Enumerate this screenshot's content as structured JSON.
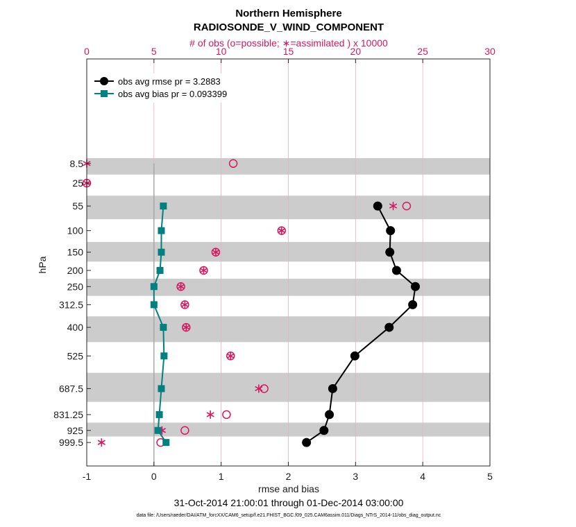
{
  "chart_data": {
    "type": "line",
    "title": "Northern Hemisphere",
    "subtitle": "RADIOSONDE_V_WIND_COMPONENT",
    "top_axis_label": "# of obs (o=possible; ∗=assimilated ) x 10000",
    "xlabel": "rmse and bias",
    "ylabel": "hPa",
    "date_range": "31-Oct-2014 21:00:01 through 01-Dec-2014 03:00:00",
    "data_file": "data file: /Users/raeder/DAI/ATM_forcXX/CAM6_setup/f.e21.FHIST_BGC.f09_025.CAM6assim.011/Diags_NTrS_2014-11/obs_diag_output.nc",
    "xlim": [
      -1,
      5
    ],
    "xticks": [
      "-1",
      "0",
      "1",
      "2",
      "3",
      "4",
      "5"
    ],
    "top_xlim": [
      0,
      30
    ],
    "top_xticks": [
      "0",
      "5",
      "10",
      "15",
      "20",
      "25",
      "30"
    ],
    "levels": [
      8.5,
      25,
      55,
      100,
      150,
      200,
      250,
      312.5,
      400,
      525,
      687.5,
      831.25,
      925,
      999.5
    ],
    "level_labels": [
      "8.5",
      "25",
      "55",
      "100",
      "150",
      "200",
      "250",
      "312.5",
      "400",
      "525",
      "687.5",
      "831.25",
      "925",
      "999.5"
    ],
    "series": [
      {
        "name": "obs avg rmse pr = 3.2883",
        "color": "#000000",
        "marker": "circle",
        "levels": [
          55,
          100,
          150,
          200,
          250,
          312.5,
          400,
          525,
          687.5,
          831.25,
          925,
          999.5
        ],
        "values": [
          3.33,
          3.52,
          3.51,
          3.61,
          3.89,
          3.85,
          3.5,
          2.99,
          2.66,
          2.61,
          2.53,
          2.27
        ]
      },
      {
        "name": "obs avg bias pr = 0.093399",
        "color": "#00807f",
        "marker": "square",
        "levels": [
          55,
          100,
          150,
          200,
          250,
          312.5,
          400,
          525,
          687.5,
          831.25,
          925,
          999.5
        ],
        "values": [
          0.14,
          0.11,
          0.11,
          0.09,
          0.0,
          0.0,
          0.14,
          0.15,
          0.11,
          0.08,
          0.06,
          0.18
        ]
      }
    ],
    "obs_counts": {
      "color": "#d6175f",
      "levels": [
        8.5,
        25,
        55,
        100,
        150,
        200,
        250,
        312.5,
        400,
        525,
        687.5,
        831.25,
        925,
        999.5
      ],
      "possible": [
        10.9,
        0.0,
        23.8,
        14.5,
        9.6,
        8.7,
        7.0,
        7.3,
        7.4,
        10.7,
        13.2,
        10.4,
        7.3,
        5.5
      ],
      "assimilated": [
        0.0,
        0.0,
        22.8,
        14.5,
        9.6,
        8.7,
        7.0,
        7.3,
        7.4,
        10.7,
        12.8,
        9.2,
        5.6,
        1.1
      ]
    }
  }
}
